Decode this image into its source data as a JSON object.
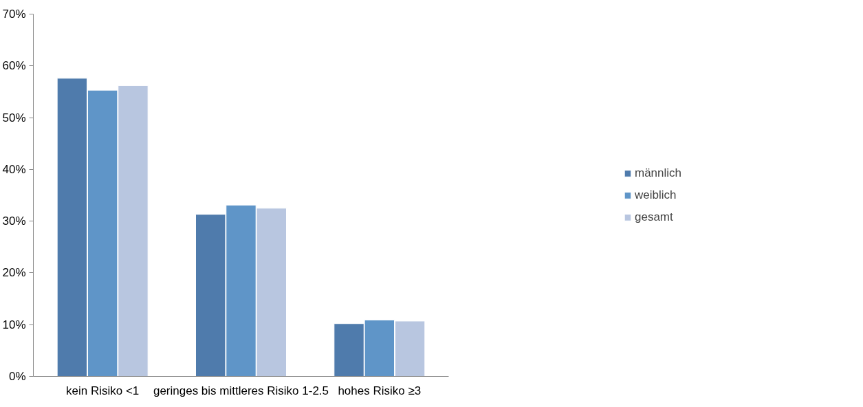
{
  "chart_data": {
    "type": "bar",
    "categories": [
      "kein Risiko <1",
      "geringes bis mittleres Risiko 1-2.5",
      "hohes Risiko ≥3"
    ],
    "series": [
      {
        "name": "männlich",
        "color": "#4f7bac",
        "values": [
          57.6,
          31.3,
          10.2
        ]
      },
      {
        "name": "weiblich",
        "color": "#5f95c8",
        "values": [
          55.3,
          33.1,
          10.9
        ]
      },
      {
        "name": "gesamt",
        "color": "#b8c6e0",
        "values": [
          56.2,
          32.5,
          10.7
        ]
      }
    ],
    "ylim": [
      0,
      70
    ],
    "yticks": [
      {
        "value": 0,
        "label": "0%"
      },
      {
        "value": 10,
        "label": "10%"
      },
      {
        "value": 20,
        "label": "20%"
      },
      {
        "value": 30,
        "label": "30%"
      },
      {
        "value": 40,
        "label": "40%"
      },
      {
        "value": 50,
        "label": "50%"
      },
      {
        "value": 60,
        "label": "60%"
      },
      {
        "value": 70,
        "label": "70%"
      }
    ],
    "grid": false,
    "legend": "right"
  }
}
